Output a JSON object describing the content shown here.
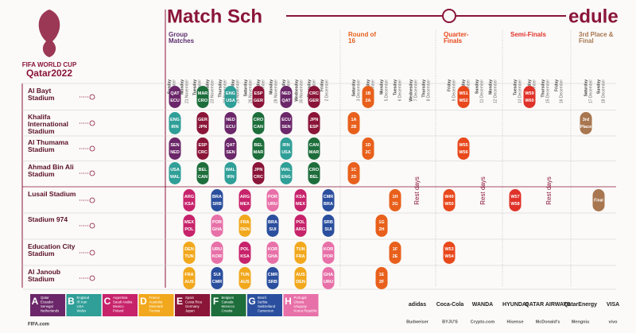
{
  "header": {
    "title_left": "Match Sch",
    "title_right": "edule"
  },
  "logo": {
    "line1": "FIFA WORLD CUP",
    "line2": "Qatar2022"
  },
  "days": [
    {
      "weekday": "Sunday",
      "date": "20 November"
    },
    {
      "weekday": "Monday",
      "date": "21 November"
    },
    {
      "weekday": "Tuesday",
      "date": "22 November"
    },
    {
      "weekday": "Wednesday",
      "date": "23 November"
    },
    {
      "weekday": "Thursday",
      "date": "24 November"
    },
    {
      "weekday": "Friday",
      "date": "25 November"
    },
    {
      "weekday": "Saturday",
      "date": "26 November"
    },
    {
      "weekday": "Sunday",
      "date": "27 November"
    },
    {
      "weekday": "Monday",
      "date": "28 November"
    },
    {
      "weekday": "Tuesday",
      "date": "29 November"
    },
    {
      "weekday": "Wednesday",
      "date": "30 November"
    },
    {
      "weekday": "Thursday",
      "date": "1 December"
    },
    {
      "weekday": "Friday",
      "date": "2 December"
    },
    {
      "weekday": "Saturday",
      "date": "3 December"
    },
    {
      "weekday": "Sunday",
      "date": "4 December"
    },
    {
      "weekday": "Monday",
      "date": "5 December"
    },
    {
      "weekday": "Tuesday",
      "date": "6 December"
    },
    {
      "weekday": "Wednesday",
      "date": "7 December"
    },
    {
      "weekday": "Thursday",
      "date": "8 December"
    },
    {
      "weekday": "Friday",
      "date": "9 December"
    },
    {
      "weekday": "Saturday",
      "date": "10 December"
    },
    {
      "weekday": "Sunday",
      "date": "11 December"
    },
    {
      "weekday": "Monday",
      "date": "12 December"
    },
    {
      "weekday": "Tuesday",
      "date": "13 December"
    },
    {
      "weekday": "Wednesday",
      "date": "14 December"
    },
    {
      "weekday": "Thursday",
      "date": "15 December"
    },
    {
      "weekday": "Friday",
      "date": "16 December"
    },
    {
      "weekday": "Saturday",
      "date": "17 December"
    },
    {
      "weekday": "Sunday",
      "date": "18 December"
    }
  ],
  "groups": [
    {
      "letter": "A",
      "color": "#6b2769",
      "teams": [
        "Qatar",
        "Ecuador",
        "Senegal",
        "Netherlands"
      ]
    },
    {
      "letter": "B",
      "color": "#2f9f98",
      "teams": [
        "England",
        "IR Iran",
        "USA",
        "Wales"
      ]
    },
    {
      "letter": "C",
      "color": "#c7236b",
      "teams": [
        "Argentina",
        "Saudi Arabia",
        "Mexico",
        "Poland"
      ]
    },
    {
      "letter": "D",
      "color": "#f2a81d",
      "teams": [
        "France",
        "Australia",
        "Denmark",
        "Tunisia"
      ]
    },
    {
      "letter": "E",
      "color": "#8a1538",
      "teams": [
        "Spain",
        "Costa Rica",
        "Germany",
        "Japan"
      ]
    },
    {
      "letter": "F",
      "color": "#1e6e3c",
      "teams": [
        "Belgium",
        "Canada",
        "Morocco",
        "Croatia"
      ]
    },
    {
      "letter": "G",
      "color": "#2b4f9e",
      "teams": [
        "Brazil",
        "Serbia",
        "Switzerland",
        "Cameroon"
      ]
    },
    {
      "letter": "H",
      "color": "#e870a8",
      "teams": [
        "Portugal",
        "Ghana",
        "Uruguay",
        "Korea Republic"
      ]
    }
  ],
  "stadiums": [
    {
      "name": "Al Bayt Stadium",
      "matches": [
        {
          "teams": [
            "QAT",
            "ECU"
          ],
          "group": "A"
        },
        {
          "teams": [
            "MAR",
            "CRO"
          ],
          "group": "F"
        },
        {
          "teams": [
            "ENG",
            "USA"
          ],
          "group": "B"
        },
        {
          "teams": [
            "ESP",
            "GER"
          ],
          "group": "E"
        },
        {
          "teams": [
            "NED",
            "QAT"
          ],
          "group": "A"
        },
        {
          "teams": [
            "CRC",
            "GER"
          ],
          "group": "E"
        }
      ]
    },
    {
      "name": "Khalifa International Stadium",
      "matches": [
        {
          "teams": [
            "ENG",
            "IRN"
          ],
          "group": "B"
        },
        {
          "teams": [
            "GER",
            "JPN"
          ],
          "group": "E"
        },
        {
          "teams": [
            "NED",
            "ECU"
          ],
          "group": "A"
        },
        {
          "teams": [
            "CRO",
            "CAN"
          ],
          "group": "F"
        },
        {
          "teams": [
            "ECU",
            "SEN"
          ],
          "group": "A"
        },
        {
          "teams": [
            "JPN",
            "ESP"
          ],
          "group": "E"
        }
      ]
    },
    {
      "name": "Al Thumama Stadium",
      "matches": [
        {
          "teams": [
            "SEN",
            "NED"
          ],
          "group": "A"
        },
        {
          "teams": [
            "ESP",
            "CRC"
          ],
          "group": "E"
        },
        {
          "teams": [
            "QAT",
            "SEN"
          ],
          "group": "A"
        },
        {
          "teams": [
            "BEL",
            "MAR"
          ],
          "group": "F"
        },
        {
          "teams": [
            "IRN",
            "USA"
          ],
          "group": "B"
        },
        {
          "teams": [
            "CAN",
            "MAR"
          ],
          "group": "F"
        }
      ]
    },
    {
      "name": "Ahmad Bin Ali Stadium",
      "matches": [
        {
          "teams": [
            "USA",
            "WAL"
          ],
          "group": "B"
        },
        {
          "teams": [
            "BEL",
            "CAN"
          ],
          "group": "F"
        },
        {
          "teams": [
            "WAL",
            "IRN"
          ],
          "group": "B"
        },
        {
          "teams": [
            "JPN",
            "CRC"
          ],
          "group": "E"
        },
        {
          "teams": [
            "WAL",
            "ENG"
          ],
          "group": "B"
        },
        {
          "teams": [
            "CRO",
            "BEL"
          ],
          "group": "F"
        }
      ]
    },
    {
      "name": "Lusail Stadium",
      "matches": [
        {
          "teams": [
            "ARG",
            "KSA"
          ],
          "group": "C"
        },
        {
          "teams": [
            "BRA",
            "SRB"
          ],
          "group": "G"
        },
        {
          "teams": [
            "ARG",
            "MEX"
          ],
          "group": "C"
        },
        {
          "teams": [
            "POR",
            "URU"
          ],
          "group": "H"
        },
        {
          "teams": [
            "KSA",
            "MEX"
          ],
          "group": "C"
        },
        {
          "teams": [
            "CMR",
            "BRA"
          ],
          "group": "G"
        }
      ]
    },
    {
      "name": "Stadium 974",
      "matches": [
        {
          "teams": [
            "MEX",
            "POL"
          ],
          "group": "C"
        },
        {
          "teams": [
            "POR",
            "GHA"
          ],
          "group": "H"
        },
        {
          "teams": [
            "FRA",
            "DEN"
          ],
          "group": "D"
        },
        {
          "teams": [
            "BRA",
            "SUI"
          ],
          "group": "G"
        },
        {
          "teams": [
            "POL",
            "ARG"
          ],
          "group": "C"
        },
        {
          "teams": [
            "SRB",
            "SUI"
          ],
          "group": "G"
        }
      ]
    },
    {
      "name": "Education City Stadium",
      "matches": [
        {
          "teams": [
            "DEN",
            "TUN"
          ],
          "group": "D"
        },
        {
          "teams": [
            "URU",
            "KOR"
          ],
          "group": "H"
        },
        {
          "teams": [
            "POL",
            "KSA"
          ],
          "group": "C"
        },
        {
          "teams": [
            "KOR",
            "GHA"
          ],
          "group": "H"
        },
        {
          "teams": [
            "TUN",
            "FRA"
          ],
          "group": "D"
        },
        {
          "teams": [
            "KOR",
            "POR"
          ],
          "group": "H"
        }
      ]
    },
    {
      "name": "Al Janoub Stadium",
      "matches": [
        {
          "teams": [
            "FRA",
            "AUS"
          ],
          "group": "D"
        },
        {
          "teams": [
            "SUI",
            "CMR"
          ],
          "group": "G"
        },
        {
          "teams": [
            "TUN",
            "AUS"
          ],
          "group": "D"
        },
        {
          "teams": [
            "CMR",
            "SRB"
          ],
          "group": "G"
        },
        {
          "teams": [
            "AUS",
            "DEN"
          ],
          "group": "D"
        },
        {
          "teams": [
            "GHA",
            "URU"
          ],
          "group": "H"
        }
      ]
    }
  ],
  "stages": [
    {
      "name": "Group Matches",
      "color": "#5c2d6e"
    },
    {
      "name": "Round of 16",
      "color": "#e8601c",
      "matches": [
        {
          "venue": "Khalifa International Stadium",
          "date": "3 December",
          "teams": [
            "1A",
            "2B"
          ]
        },
        {
          "venue": "Ahmad Bin Ali Stadium",
          "date": "3 December",
          "teams": [
            "1C",
            "2D"
          ]
        },
        {
          "venue": "Al Bayt Stadium",
          "date": "4 December",
          "teams": [
            "1B",
            "2A"
          ]
        },
        {
          "venue": "Al Thumama Stadium",
          "date": "4 December",
          "teams": [
            "1D",
            "2C"
          ]
        },
        {
          "venue": "Stadium 974",
          "date": "5 December",
          "teams": [
            "1G",
            "2H"
          ]
        },
        {
          "venue": "Al Janoub Stadium",
          "date": "5 December",
          "teams": [
            "1E",
            "2F"
          ]
        },
        {
          "venue": "Lusail Stadium",
          "date": "6 December",
          "teams": [
            "1H",
            "2G"
          ]
        },
        {
          "venue": "Education City Stadium",
          "date": "6 December",
          "teams": [
            "1F",
            "2E"
          ]
        }
      ]
    },
    {
      "name": "Quarter-Finals",
      "color": "#e8481c",
      "matches": [
        {
          "venue": "Education City Stadium",
          "date": "9 December",
          "teams": [
            "W53",
            "W54"
          ]
        },
        {
          "venue": "Lusail Stadium",
          "date": "9 December",
          "teams": [
            "W49",
            "W50"
          ]
        },
        {
          "venue": "Al Thumama Stadium",
          "date": "10 December",
          "teams": [
            "W55",
            "W56"
          ]
        },
        {
          "venue": "Al Bayt Stadium",
          "date": "10 December",
          "teams": [
            "W51",
            "W52"
          ]
        }
      ]
    },
    {
      "name": "Semi-Finals",
      "color": "#e0322a",
      "matches": [
        {
          "venue": "Lusail Stadium",
          "date": "13 December",
          "teams": [
            "W57",
            "W58"
          ]
        },
        {
          "venue": "Al Bayt Stadium",
          "date": "14 December",
          "teams": [
            "W59",
            "W60"
          ]
        }
      ]
    },
    {
      "name": "3rd Place & Final",
      "color": "#a8764f",
      "matches": [
        {
          "venue": "Khalifa International Stadium",
          "date": "17 December",
          "teams": [
            "3rd",
            "Place"
          ]
        },
        {
          "venue": "Lusail Stadium",
          "date": "18 December",
          "teams": [
            "Final"
          ]
        }
      ]
    }
  ],
  "rest_days": [
    "Rest days",
    "Rest days",
    "Rest days"
  ],
  "sponsors": [
    [
      "adidas",
      "Coca-Cola",
      "WANDA",
      "HYUNDAI",
      "QATAR AIRWAYS",
      "QatarEnergy",
      "VISA"
    ],
    [
      "Budweiser",
      "BYJU'S",
      "Crypto.com",
      "Hisense",
      "McDonald's",
      "Mengniu",
      "vivo"
    ]
  ],
  "footer": "FIFA.com"
}
